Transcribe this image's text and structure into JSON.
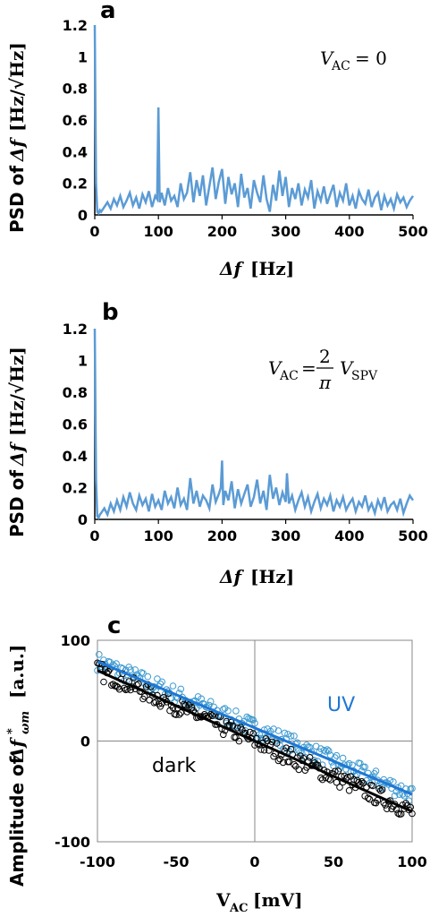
{
  "chart_data": [
    {
      "panel": "a",
      "type": "line",
      "ylabel": "PSD of Δf [Hz/√Hz]",
      "xlabel": "Δf [Hz]",
      "xlim": [
        0,
        500
      ],
      "ylim": [
        0,
        1.2
      ],
      "x_ticks": [
        "0",
        "100",
        "200",
        "300",
        "400",
        "500"
      ],
      "y_ticks": [
        "0",
        "0.2",
        "0.4",
        "0.6",
        "0.8",
        "1",
        "1.2"
      ],
      "annotation": "V_AC = 0",
      "color": "#5b9bd5",
      "series": [
        {
          "x": [
            0,
            2,
            4,
            6,
            8,
            10,
            15,
            20,
            25,
            30,
            35,
            40,
            45,
            50,
            55,
            60,
            65,
            70,
            75,
            80,
            85,
            90,
            95,
            98,
            100,
            102,
            105,
            110,
            115,
            120,
            125,
            130,
            135,
            140,
            145,
            150,
            155,
            160,
            165,
            170,
            175,
            180,
            185,
            190,
            195,
            200,
            205,
            210,
            215,
            220,
            225,
            230,
            235,
            240,
            245,
            250,
            255,
            260,
            265,
            270,
            275,
            280,
            285,
            290,
            295,
            300,
            305,
            310,
            315,
            320,
            325,
            330,
            335,
            340,
            345,
            350,
            355,
            360,
            365,
            370,
            375,
            380,
            385,
            390,
            395,
            400,
            405,
            410,
            415,
            420,
            425,
            430,
            435,
            440,
            445,
            450,
            455,
            460,
            465,
            470,
            475,
            480,
            485,
            490,
            495,
            500
          ],
          "y": [
            1.2,
            0.2,
            0.02,
            0.01,
            0.03,
            0.02,
            0.05,
            0.08,
            0.04,
            0.1,
            0.06,
            0.12,
            0.05,
            0.09,
            0.14,
            0.06,
            0.11,
            0.04,
            0.13,
            0.08,
            0.15,
            0.05,
            0.12,
            0.1,
            0.68,
            0.08,
            0.14,
            0.06,
            0.17,
            0.09,
            0.12,
            0.05,
            0.2,
            0.1,
            0.14,
            0.27,
            0.08,
            0.22,
            0.12,
            0.25,
            0.06,
            0.18,
            0.3,
            0.1,
            0.21,
            0.29,
            0.07,
            0.24,
            0.13,
            0.2,
            0.05,
            0.26,
            0.11,
            0.17,
            0.04,
            0.22,
            0.14,
            0.08,
            0.25,
            0.1,
            0.02,
            0.19,
            0.09,
            0.28,
            0.12,
            0.24,
            0.05,
            0.17,
            0.1,
            0.2,
            0.06,
            0.16,
            0.11,
            0.22,
            0.04,
            0.15,
            0.09,
            0.18,
            0.07,
            0.13,
            0.19,
            0.05,
            0.14,
            0.09,
            0.2,
            0.06,
            0.12,
            0.04,
            0.15,
            0.1,
            0.07,
            0.16,
            0.05,
            0.11,
            0.14,
            0.03,
            0.12,
            0.06,
            0.1,
            0.04,
            0.13,
            0.08,
            0.11,
            0.05,
            0.09,
            0.12
          ]
        }
      ]
    },
    {
      "panel": "b",
      "type": "line",
      "ylabel": "PSD of Δf [Hz/√Hz]",
      "xlabel": "Δf [Hz]",
      "xlim": [
        0,
        500
      ],
      "ylim": [
        0,
        1.2
      ],
      "x_ticks": [
        "0",
        "100",
        "200",
        "300",
        "400",
        "500"
      ],
      "y_ticks": [
        "0",
        "0.2",
        "0.4",
        "0.6",
        "0.8",
        "1",
        "1.2"
      ],
      "annotation": "V_AC = (2/π) V_SPV",
      "color": "#5b9bd5",
      "series": [
        {
          "x": [
            0,
            2,
            4,
            6,
            8,
            10,
            15,
            20,
            25,
            30,
            35,
            40,
            45,
            50,
            55,
            60,
            65,
            70,
            75,
            80,
            85,
            90,
            95,
            100,
            105,
            110,
            115,
            120,
            125,
            130,
            135,
            140,
            145,
            150,
            155,
            160,
            165,
            170,
            175,
            180,
            185,
            190,
            195,
            198,
            200,
            202,
            205,
            210,
            215,
            220,
            225,
            230,
            235,
            240,
            245,
            250,
            255,
            260,
            265,
            270,
            275,
            280,
            285,
            290,
            295,
            300,
            302,
            305,
            310,
            315,
            320,
            325,
            330,
            335,
            340,
            345,
            350,
            355,
            360,
            365,
            370,
            375,
            380,
            385,
            390,
            395,
            400,
            405,
            410,
            415,
            420,
            425,
            430,
            435,
            440,
            445,
            450,
            455,
            460,
            465,
            470,
            475,
            480,
            485,
            490,
            495,
            500
          ],
          "y": [
            1.2,
            0.25,
            0.02,
            0.01,
            0.03,
            0.04,
            0.07,
            0.03,
            0.1,
            0.05,
            0.12,
            0.06,
            0.14,
            0.08,
            0.17,
            0.1,
            0.06,
            0.15,
            0.09,
            0.13,
            0.05,
            0.16,
            0.08,
            0.12,
            0.06,
            0.18,
            0.1,
            0.14,
            0.07,
            0.2,
            0.09,
            0.13,
            0.06,
            0.26,
            0.1,
            0.18,
            0.08,
            0.15,
            0.12,
            0.07,
            0.22,
            0.11,
            0.16,
            0.2,
            0.37,
            0.09,
            0.18,
            0.12,
            0.24,
            0.07,
            0.19,
            0.1,
            0.16,
            0.22,
            0.08,
            0.14,
            0.25,
            0.1,
            0.18,
            0.06,
            0.28,
            0.13,
            0.2,
            0.09,
            0.17,
            0.11,
            0.29,
            0.1,
            0.15,
            0.06,
            0.12,
            0.17,
            0.08,
            0.14,
            0.05,
            0.11,
            0.16,
            0.07,
            0.13,
            0.09,
            0.15,
            0.05,
            0.12,
            0.08,
            0.14,
            0.06,
            0.1,
            0.13,
            0.05,
            0.11,
            0.08,
            0.15,
            0.06,
            0.1,
            0.04,
            0.12,
            0.07,
            0.14,
            0.05,
            0.09,
            0.11,
            0.06,
            0.13,
            0.04,
            0.1,
            0.15,
            0.12
          ]
        }
      ]
    },
    {
      "panel": "c",
      "type": "scatter",
      "ylabel": "Amplitude of Δf*ωm [a.u.]",
      "xlabel": "V_AC [mV]",
      "xlim": [
        -100,
        100
      ],
      "ylim": [
        -100,
        100
      ],
      "x_ticks": [
        "-100",
        "-50",
        "0",
        "50",
        "100"
      ],
      "y_ticks": [
        "-100",
        "0",
        "100"
      ],
      "grid_zero_lines": true,
      "series": [
        {
          "name": "UV",
          "color": "#1f77d4",
          "marker_color": "#3d9ad0",
          "fit": {
            "slope": -0.66,
            "intercept": 13
          }
        },
        {
          "name": "dark",
          "color": "#000000",
          "marker_color": "#000000",
          "fit": {
            "slope": -0.7,
            "intercept": 0
          }
        }
      ]
    }
  ]
}
